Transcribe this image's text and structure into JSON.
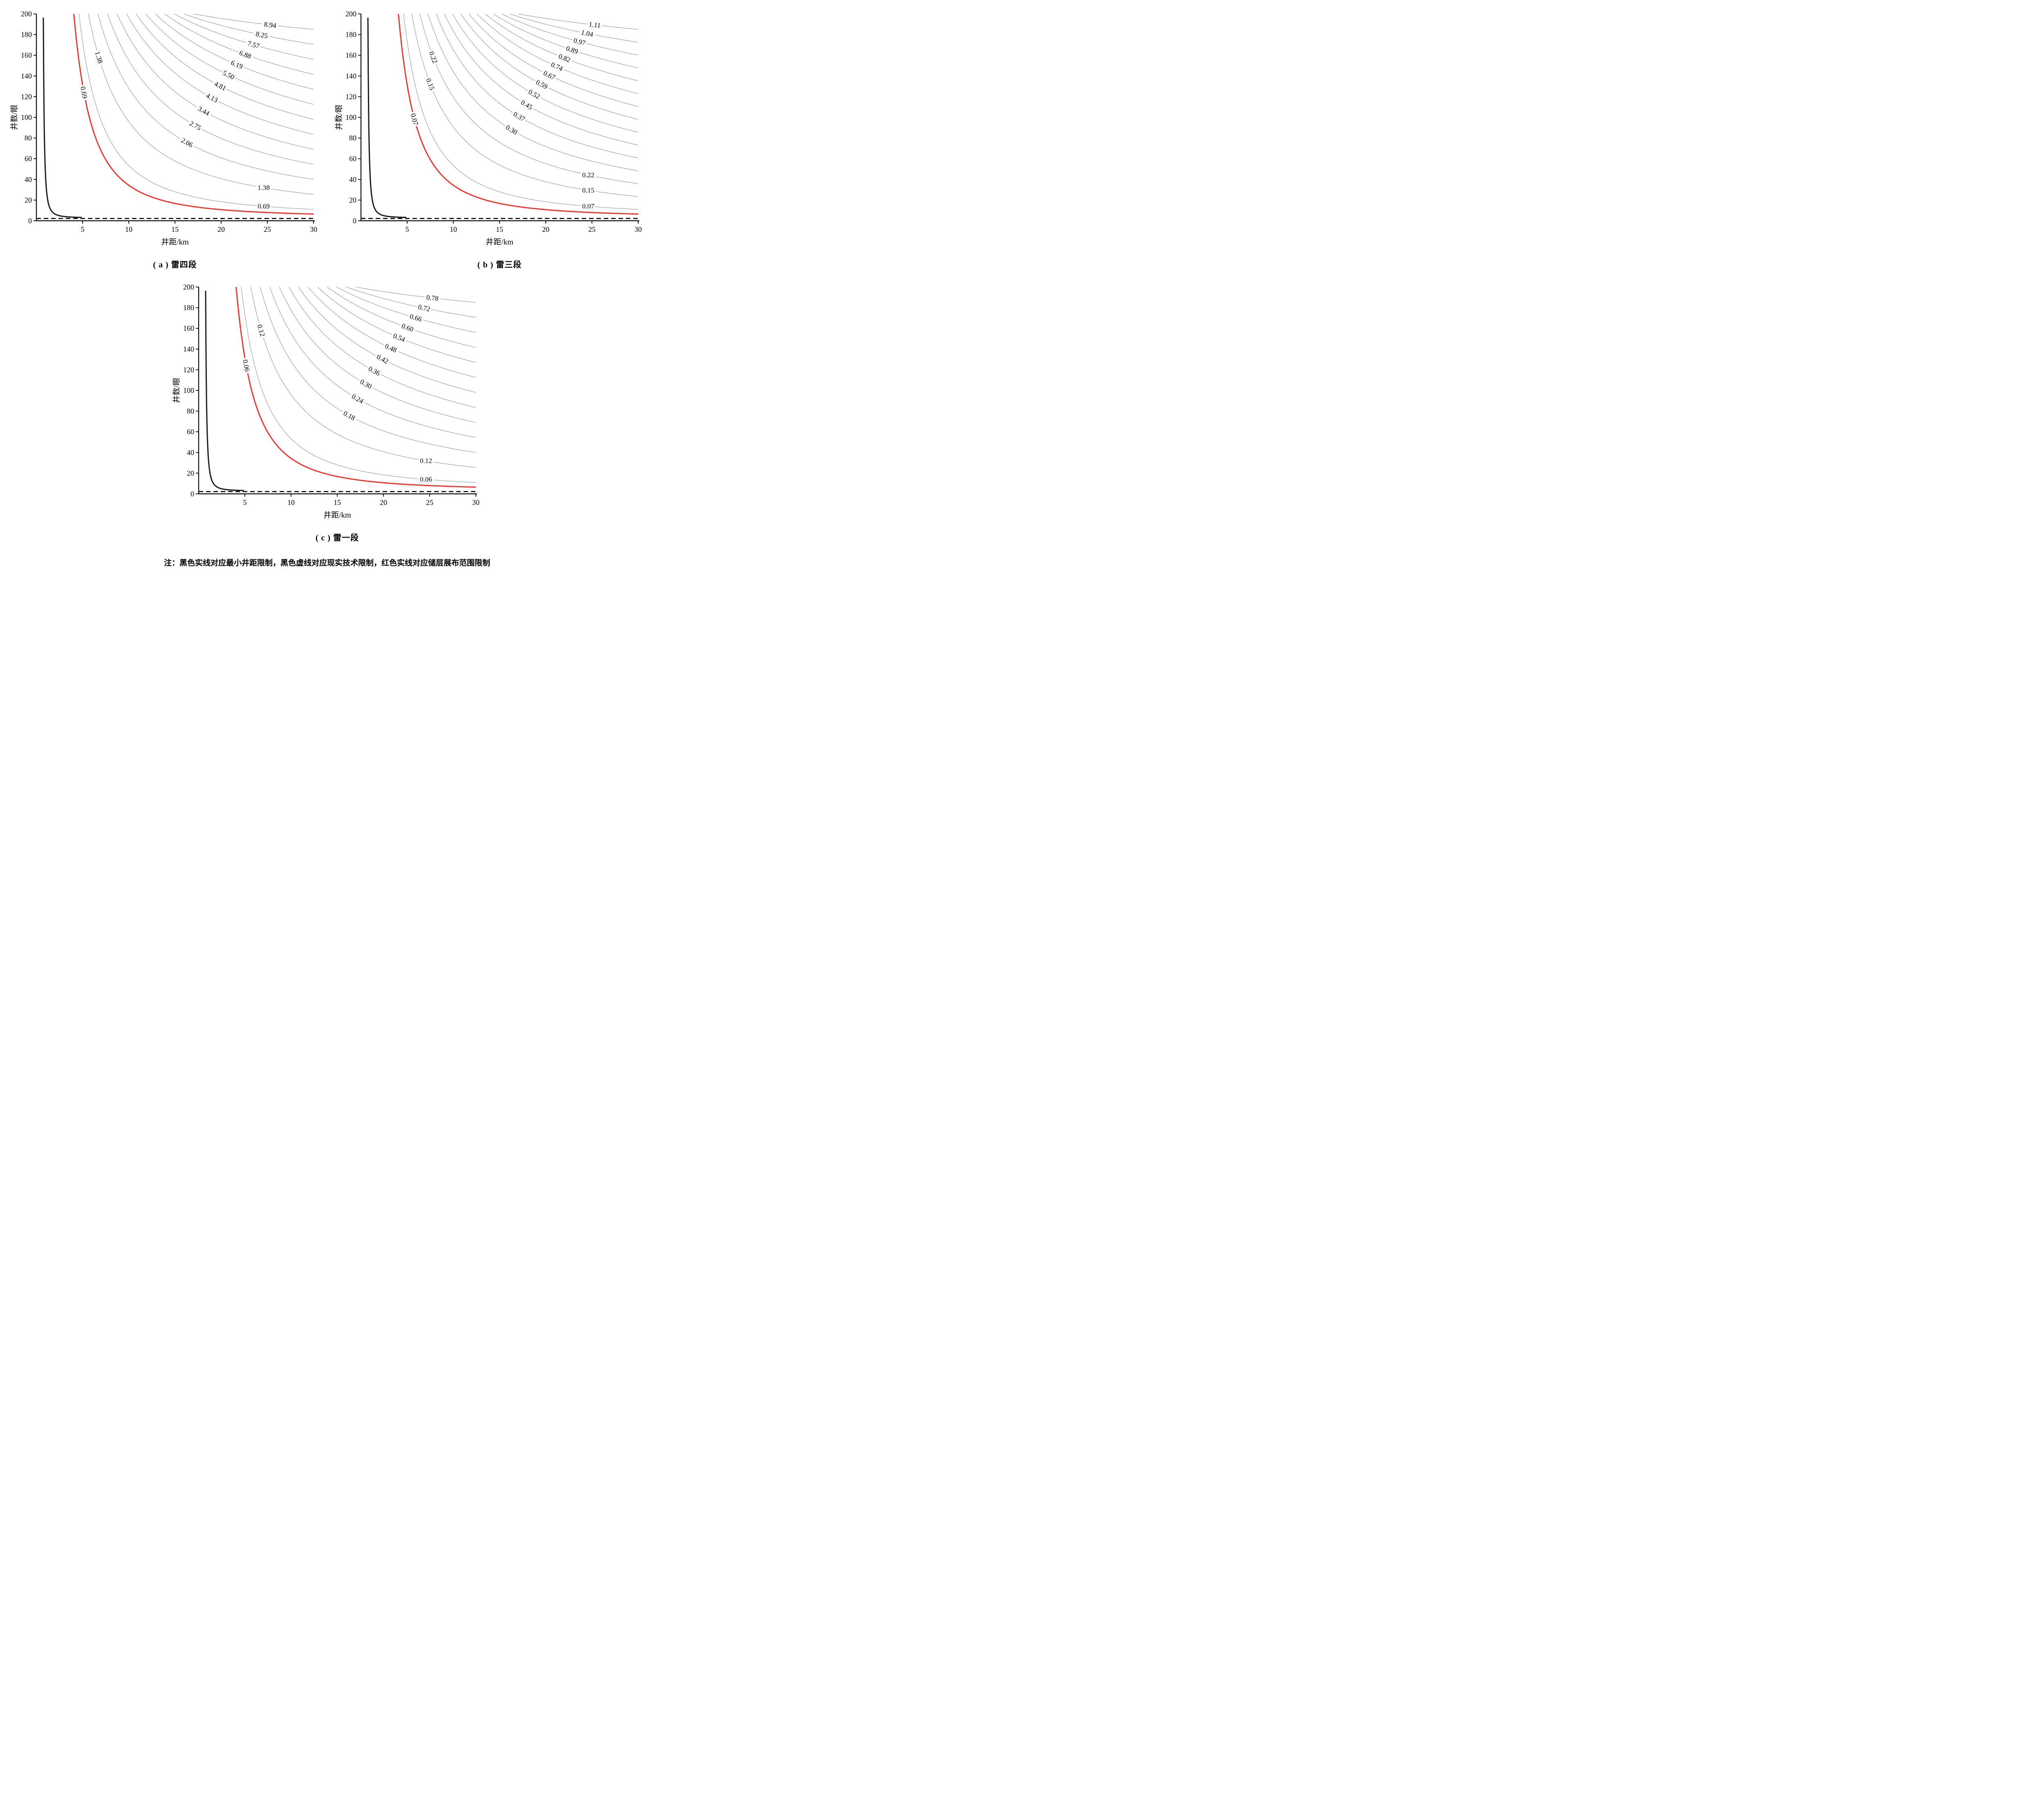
{
  "figure": {
    "note": "注：黑色实线对应最小井距限制，黑色虚线对应现实技术限制，红色实线对应储层展布范围限制"
  },
  "legend_meaning": {
    "black_solid": "最小井距限制",
    "black_dashed": "现实技术限制",
    "red_solid": "储层展布范围限制"
  },
  "colors": {
    "contour_gray": "#a3a3a3",
    "constraint_red": "#e8392e",
    "constraint_black": "#1a1a1a"
  },
  "axes": {
    "x_label": "井距/km",
    "y_label": "井数/眼",
    "x_range": [
      0,
      30
    ],
    "y_range": [
      0,
      200
    ],
    "x_ticks": [
      5,
      10,
      15,
      20,
      25,
      30
    ],
    "y_ticks": [
      0,
      20,
      40,
      60,
      80,
      100,
      120,
      140,
      160,
      180,
      200
    ]
  },
  "chart_data": [
    {
      "type": "line",
      "subtype": "contour",
      "title": "( a ) 雷四段",
      "xlabel": "井距/km",
      "ylabel": "井数/眼",
      "xlim": [
        0,
        30
      ],
      "ylim": [
        0,
        200
      ],
      "contour_levels": [
        0.69,
        1.38,
        2.06,
        2.75,
        3.44,
        4.13,
        4.81,
        5.5,
        6.19,
        6.88,
        7.57,
        8.25,
        8.94
      ],
      "band_labels": [
        "2.06",
        "2.75",
        "3.44",
        "4.13",
        "4.81",
        "5.50",
        "6.19",
        "6.88",
        "7.57",
        "8.25",
        "8.94"
      ],
      "right_labels": [
        "1.38",
        "0.69"
      ],
      "rotated_labels": [
        "1.38"
      ],
      "red_level": 0.69,
      "red_label": "0.69",
      "constraints": {
        "black_solid": "最小井距限制",
        "black_dashed": "现实技术限制",
        "red_solid": "储层展布范围限制"
      }
    },
    {
      "type": "line",
      "subtype": "contour",
      "title": "( b ) 雷三段",
      "xlabel": "井距/km",
      "ylabel": "井数/眼",
      "xlim": [
        0,
        30
      ],
      "ylim": [
        0,
        200
      ],
      "contour_levels": [
        0.07,
        0.15,
        0.22,
        0.3,
        0.37,
        0.45,
        0.52,
        0.59,
        0.67,
        0.74,
        0.82,
        0.89,
        0.97,
        1.04,
        1.11
      ],
      "band_labels": [
        "0.30",
        "0.37",
        "0.45",
        "0.52",
        "0.59",
        "0.67",
        "0.74",
        "0.82",
        "0.89",
        "0.97",
        "1.04",
        "1.11"
      ],
      "right_labels": [
        "0.22",
        "0.15",
        "0.07"
      ],
      "rotated_labels": [
        "0.22",
        "0.15"
      ],
      "red_level": 0.07,
      "red_label": "0.07",
      "constraints": {
        "black_solid": "最小井距限制",
        "black_dashed": "现实技术限制",
        "red_solid": "储层展布范围限制"
      }
    },
    {
      "type": "line",
      "subtype": "contour",
      "title": "( c ) 雷一段",
      "xlabel": "井距/km",
      "ylabel": "井数/眼",
      "xlim": [
        0,
        30
      ],
      "ylim": [
        0,
        200
      ],
      "contour_levels": [
        0.06,
        0.12,
        0.18,
        0.24,
        0.3,
        0.36,
        0.42,
        0.48,
        0.54,
        0.6,
        0.66,
        0.72,
        0.78
      ],
      "band_labels": [
        "0.18",
        "0.24",
        "0.30",
        "0.36",
        "0.42",
        "0.48",
        "0.54",
        "0.60",
        "0.66",
        "0.72",
        "0.78"
      ],
      "right_labels": [
        "0.12",
        "0.06"
      ],
      "rotated_labels": [
        "0.12"
      ],
      "red_level": 0.06,
      "red_label": "0.06",
      "constraints": {
        "black_solid": "最小井距限制",
        "black_dashed": "现实技术限制",
        "red_solid": "储层展布范围限制"
      }
    }
  ]
}
